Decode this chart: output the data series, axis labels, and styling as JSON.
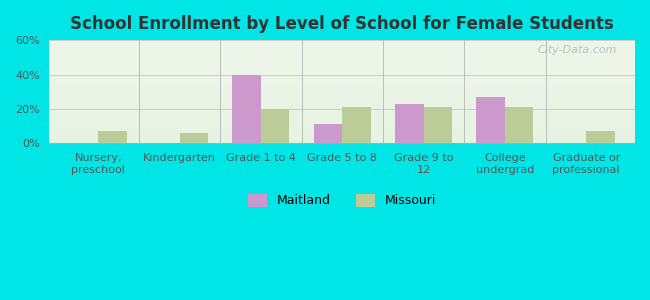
{
  "title": "School Enrollment by Level of School for Female Students",
  "categories": [
    "Nursery,\npreschool",
    "Kindergarten",
    "Grade 1 to 4",
    "Grade 5 to 8",
    "Grade 9 to\n12",
    "College\nundergrad",
    "Graduate or\nprofessional"
  ],
  "maitland": [
    0,
    0,
    40,
    11,
    23,
    27,
    0
  ],
  "missouri": [
    7,
    6,
    20,
    21,
    21,
    21,
    7
  ],
  "maitland_color": "#cc99cc",
  "missouri_color": "#bbcc99",
  "background_outer": "#00e5e5",
  "background_inner_top": "#e8f5e8",
  "background_inner_bottom": "#f8fff8",
  "title_color": "#333333",
  "axis_label_color": "#555555",
  "grid_color": "#cccccc",
  "ylim": [
    0,
    60
  ],
  "yticks": [
    0,
    20,
    40,
    60
  ],
  "ytick_labels": [
    "0%",
    "20%",
    "40%",
    "60%"
  ],
  "bar_width": 0.35,
  "legend_maitland": "Maitland",
  "legend_missouri": "Missouri",
  "watermark": "City-Data.com"
}
